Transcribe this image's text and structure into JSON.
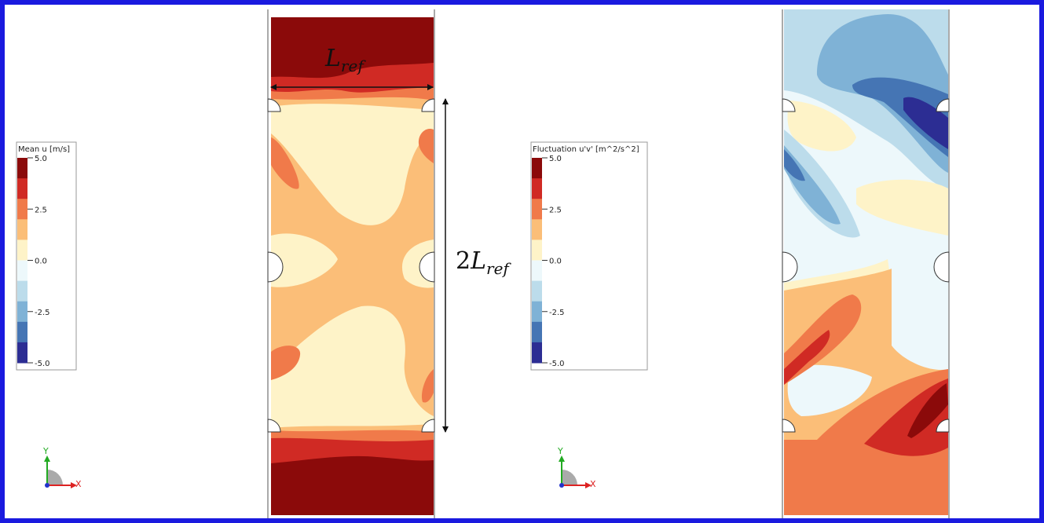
{
  "left_panel": {
    "colorbar": {
      "title": "Mean u [m/s]",
      "ticks": [
        "5.0",
        "2.5",
        "0.0",
        "-2.5",
        "-5.0"
      ],
      "colors": [
        "#8b0a0a",
        "#d02a24",
        "#f07a4a",
        "#fbbe78",
        "#fef3c8",
        "#edf8fb",
        "#bcdceb",
        "#7fb2d6",
        "#4575b4",
        "#2c2d93"
      ]
    },
    "annotation_width": {
      "base": "L",
      "subscript": "ref"
    },
    "annotation_height": {
      "prefix": "2",
      "base": "L",
      "subscript": "ref"
    },
    "axes_triad": {
      "y": "Y",
      "x": "X"
    }
  },
  "right_panel": {
    "colorbar": {
      "title": "Fluctuation u'v' [m^2/s^2]",
      "ticks": [
        "5.0",
        "2.5",
        "0.0",
        "-2.5",
        "-5.0"
      ],
      "colors": [
        "#8b0a0a",
        "#d02a24",
        "#f07a4a",
        "#fbbe78",
        "#fef3c8",
        "#edf8fb",
        "#bcdceb",
        "#7fb2d6",
        "#4575b4",
        "#2c2d93"
      ]
    },
    "axes_triad": {
      "y": "Y",
      "x": "X"
    }
  },
  "colors": {
    "frame_border": "#1a1adf",
    "triad_y": "#22aa22",
    "triad_x": "#dd2222",
    "triad_z": "#2233cc"
  }
}
